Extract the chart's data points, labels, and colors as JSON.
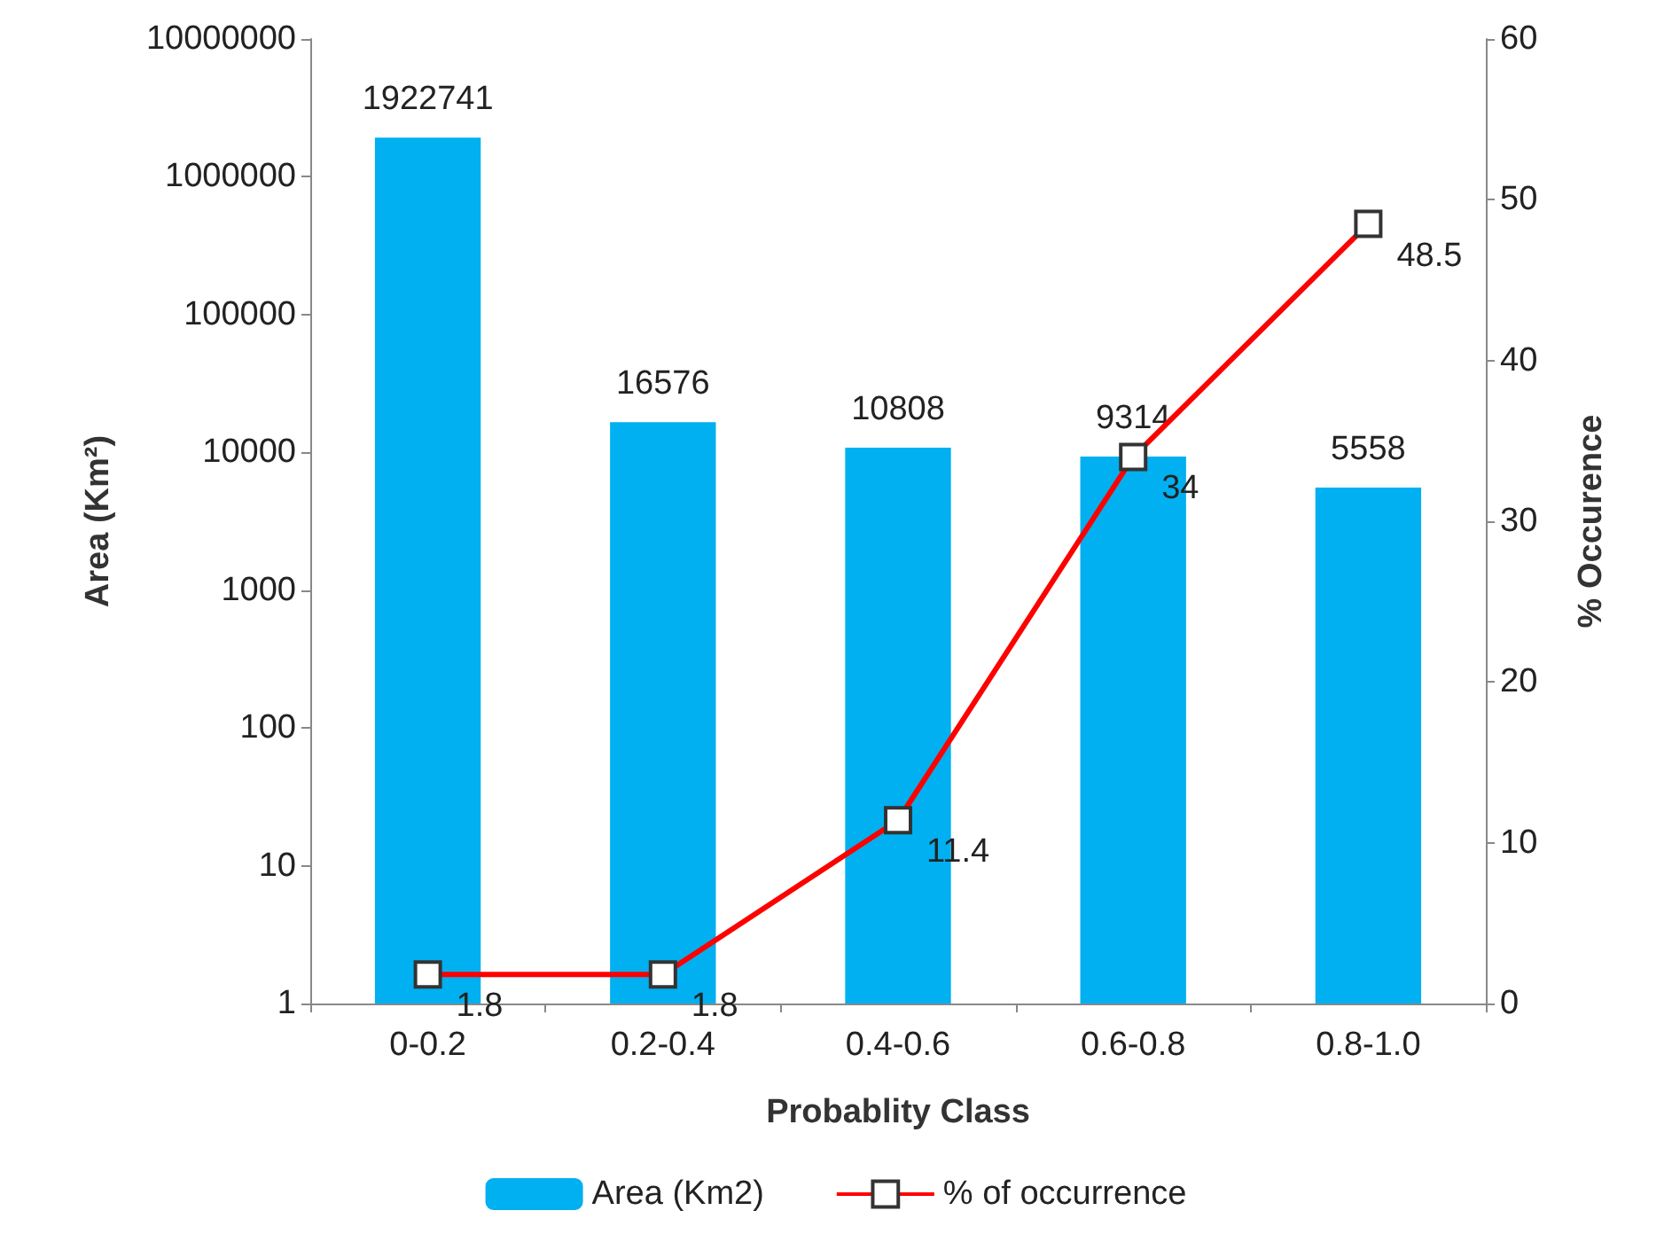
{
  "chart_data": {
    "type": "bar",
    "xlabel": "Probablity Class",
    "ylabel": "Area (Km²)",
    "y2label": "% Occurence",
    "categories": [
      "0-0.2",
      "0.2-0.4",
      "0.4-0.6",
      "0.6-0.8",
      "0.8-1.0"
    ],
    "series": [
      {
        "name": "Area (Km2)",
        "color": "#00b0f0",
        "values": [
          1922741,
          16576,
          10808,
          9314,
          5558
        ]
      },
      {
        "name": "% of occurrence",
        "type": "line",
        "axis": "y2",
        "color": "#ff0000",
        "marker": "square",
        "values": [
          1.8,
          1.8,
          11.4,
          34,
          48.5
        ]
      }
    ],
    "log": "y",
    "ylim": [
      1,
      10000000
    ],
    "yticks": [
      1,
      10,
      100,
      1000,
      10000,
      100000,
      1000000,
      10000000
    ],
    "y2lim": [
      0,
      60
    ],
    "y2ticks": [
      0,
      10,
      20,
      30,
      40,
      50,
      60
    ],
    "data_labels": true,
    "grid": false,
    "legend": "bottom"
  }
}
